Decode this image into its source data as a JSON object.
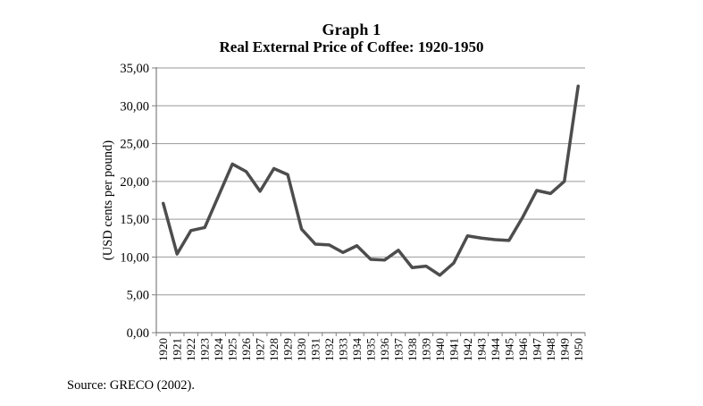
{
  "header": {
    "title": "Graph 1",
    "subtitle": "Real External Price of Coffee: 1920-1950"
  },
  "footer": {
    "source": "Source: GRECO (2002)."
  },
  "chart_data": {
    "type": "line",
    "title": "Graph 1",
    "subtitle": "Real External Price of Coffee: 1920-1950",
    "ylabel": "(USD cents per pound)",
    "xlabel": "",
    "categories": [
      "1920",
      "1921",
      "1922",
      "1923",
      "1924",
      "1925",
      "1926",
      "1927",
      "1928",
      "1929",
      "1930",
      "1931",
      "1932",
      "1933",
      "1934",
      "1935",
      "1936",
      "1937",
      "1938",
      "1939",
      "1940",
      "1941",
      "1942",
      "1943",
      "1944",
      "1945",
      "1946",
      "1947",
      "1948",
      "1949",
      "1950"
    ],
    "values": [
      17.1,
      10.4,
      13.5,
      13.9,
      18.1,
      22.3,
      21.3,
      18.7,
      21.7,
      20.9,
      13.7,
      11.7,
      11.6,
      10.6,
      11.5,
      9.7,
      9.6,
      10.9,
      8.6,
      8.8,
      7.6,
      9.2,
      12.8,
      12.5,
      12.3,
      12.2,
      15.3,
      18.8,
      18.4,
      20.0,
      32.6
    ],
    "ylim": [
      0,
      35
    ],
    "ytick_step": 5,
    "ytick_labels": [
      "0,00",
      "5,00",
      "10,00",
      "15,00",
      "20,00",
      "25,00",
      "30,00",
      "35,00"
    ],
    "grid": true,
    "legend_position": "none",
    "line_color": "#4d4d4d",
    "grid_color": "#999999",
    "axis_color": "#808080",
    "source_note": "Source: GRECO (2002)."
  }
}
